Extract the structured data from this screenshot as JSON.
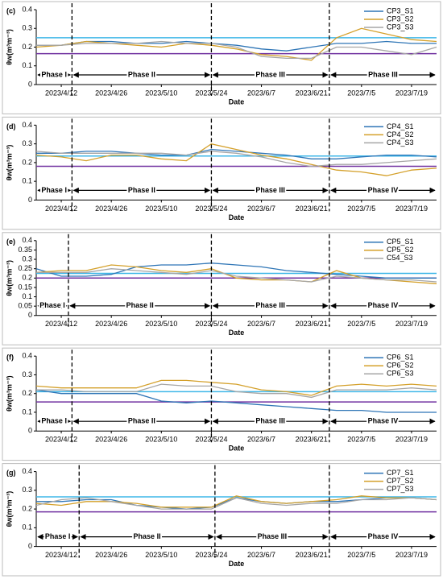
{
  "chart_data": [
    {
      "type": "line",
      "panel_label": "(c)",
      "x_label": "Date",
      "y_label": "θw(m³m⁻³)",
      "x": [
        "2023/4/5",
        "2023/4/12",
        "2023/4/19",
        "2023/4/26",
        "2023/5/3",
        "2023/5/10",
        "2023/5/17",
        "2023/5/24",
        "2023/5/31",
        "2023/6/7",
        "2023/6/14",
        "2023/6/21",
        "2023/6/28",
        "2023/7/5",
        "2023/7/12",
        "2023/7/19",
        "2023/7/26"
      ],
      "xlim": [
        "2023/4/5",
        "2023/7/26"
      ],
      "xticks": [
        "2023/4/12",
        "2023/4/26",
        "2023/5/10",
        "2023/5/24",
        "2023/6/7",
        "2023/6/21",
        "2023/7/5",
        "2023/7/19"
      ],
      "ylim": [
        0,
        0.4
      ],
      "yticks": [
        0,
        0.1,
        0.2,
        0.3,
        0.4
      ],
      "series": [
        {
          "name": "CP3_S1",
          "color": "#2e75b6",
          "values": [
            0.21,
            0.21,
            0.23,
            0.23,
            0.22,
            0.22,
            0.23,
            0.22,
            0.21,
            0.19,
            0.18,
            0.2,
            0.22,
            0.22,
            0.23,
            0.22,
            0.22
          ]
        },
        {
          "name": "CP3_S2",
          "color": "#d4a02a",
          "values": [
            0.2,
            0.21,
            0.23,
            0.22,
            0.21,
            0.2,
            0.22,
            0.21,
            0.19,
            0.16,
            0.15,
            0.13,
            0.25,
            0.3,
            0.27,
            0.24,
            0.23
          ]
        },
        {
          "name": "CP3_S3",
          "color": "#a6a6a6",
          "values": [
            0.21,
            0.21,
            0.22,
            0.22,
            0.22,
            0.23,
            0.22,
            0.22,
            0.2,
            0.15,
            0.14,
            0.14,
            0.2,
            0.2,
            0.18,
            0.16,
            0.2
          ]
        }
      ],
      "reference_lines": [
        {
          "value": 0.25,
          "color": "#3fb7e8"
        },
        {
          "value": 0.165,
          "color": "#7030a0"
        }
      ],
      "phase_boundaries": [
        "2023/4/15",
        "2023/5/24",
        "2023/6/26"
      ],
      "phases": [
        "Phase I",
        "Phase II",
        "Phase III",
        "Phase III"
      ]
    },
    {
      "type": "line",
      "panel_label": "(d)",
      "x_label": "Date",
      "y_label": "θw(m³m⁻³)",
      "x": [
        "2023/4/5",
        "2023/4/12",
        "2023/4/19",
        "2023/4/26",
        "2023/5/3",
        "2023/5/10",
        "2023/5/17",
        "2023/5/24",
        "2023/5/31",
        "2023/6/7",
        "2023/6/14",
        "2023/6/21",
        "2023/6/28",
        "2023/7/5",
        "2023/7/12",
        "2023/7/19",
        "2023/7/26"
      ],
      "xlim": [
        "2023/4/5",
        "2023/7/26"
      ],
      "xticks": [
        "2023/4/12",
        "2023/4/26",
        "2023/5/10",
        "2023/5/24",
        "2023/6/7",
        "2023/6/21",
        "2023/7/5",
        "2023/7/19"
      ],
      "ylim": [
        0,
        0.4
      ],
      "yticks": [
        0,
        0.1,
        0.2,
        0.3,
        0.4
      ],
      "series": [
        {
          "name": "CP4_S1",
          "color": "#2e75b6",
          "values": [
            0.25,
            0.25,
            0.26,
            0.26,
            0.25,
            0.24,
            0.24,
            0.27,
            0.26,
            0.25,
            0.24,
            0.22,
            0.22,
            0.23,
            0.24,
            0.24,
            0.23
          ]
        },
        {
          "name": "CP4_S2",
          "color": "#d4a02a",
          "values": [
            0.24,
            0.23,
            0.21,
            0.24,
            0.24,
            0.22,
            0.21,
            0.3,
            0.27,
            0.24,
            0.22,
            0.19,
            0.16,
            0.15,
            0.13,
            0.16,
            0.17
          ]
        },
        {
          "name": "CP4_S3",
          "color": "#a6a6a6",
          "values": [
            0.26,
            0.25,
            0.25,
            0.25,
            0.25,
            0.25,
            0.24,
            0.26,
            0.25,
            0.23,
            0.2,
            0.18,
            0.19,
            0.19,
            0.2,
            0.21,
            0.22
          ]
        }
      ],
      "reference_lines": [
        {
          "value": 0.235,
          "color": "#3fb7e8"
        },
        {
          "value": 0.18,
          "color": "#7030a0"
        }
      ],
      "phase_boundaries": [
        "2023/4/15",
        "2023/5/24",
        "2023/6/26"
      ],
      "phases": [
        "Phase I",
        "Phase II",
        "Phase III",
        "Phase IV"
      ]
    },
    {
      "type": "line",
      "panel_label": "(e)",
      "x_label": "Date",
      "y_label": "θw(m³m⁻³)",
      "x": [
        "2023/4/5",
        "2023/4/12",
        "2023/4/19",
        "2023/4/26",
        "2023/5/3",
        "2023/5/10",
        "2023/5/17",
        "2023/5/24",
        "2023/5/31",
        "2023/6/7",
        "2023/6/14",
        "2023/6/21",
        "2023/6/28",
        "2023/7/5",
        "2023/7/12",
        "2023/7/19",
        "2023/7/26"
      ],
      "xlim": [
        "2023/4/5",
        "2023/7/26"
      ],
      "xticks": [
        "2023/4/12",
        "2023/4/26",
        "2023/5/10",
        "2023/5/24",
        "2023/6/7",
        "2023/6/21",
        "2023/7/5",
        "2023/7/19"
      ],
      "ylim": [
        0,
        0.4
      ],
      "yticks": [
        0,
        0.05,
        0.1,
        0.15,
        0.2,
        0.25,
        0.3,
        0.35,
        0.4
      ],
      "series": [
        {
          "name": "CP5_S1",
          "color": "#2e75b6",
          "values": [
            0.25,
            0.21,
            0.21,
            0.22,
            0.26,
            0.27,
            0.27,
            0.28,
            0.27,
            0.26,
            0.24,
            0.23,
            0.22,
            0.21,
            0.2,
            0.2,
            0.2
          ]
        },
        {
          "name": "CP5_S2",
          "color": "#d4a02a",
          "values": [
            0.23,
            0.24,
            0.24,
            0.27,
            0.26,
            0.24,
            0.23,
            0.25,
            0.2,
            0.19,
            0.19,
            0.18,
            0.24,
            0.2,
            0.19,
            0.18,
            0.17
          ]
        },
        {
          "name": "C54_S3",
          "color": "#a6a6a6",
          "values": [
            0.23,
            0.23,
            0.23,
            0.25,
            0.24,
            0.23,
            0.22,
            0.24,
            0.21,
            0.2,
            0.19,
            0.18,
            0.21,
            0.2,
            0.19,
            0.19,
            0.18
          ]
        }
      ],
      "reference_lines": [
        {
          "value": 0.225,
          "color": "#3fb7e8"
        },
        {
          "value": 0.2,
          "color": "#7030a0"
        }
      ],
      "phase_boundaries": [
        "2023/4/14",
        "2023/5/24",
        "2023/6/26"
      ],
      "phases": [
        "Phase I",
        "Phase II",
        "Phase III",
        "Phase IV"
      ]
    },
    {
      "type": "line",
      "panel_label": "(f)",
      "x_label": "Date",
      "y_label": "θw(m³m⁻³)",
      "x": [
        "2023/4/5",
        "2023/4/12",
        "2023/4/19",
        "2023/4/26",
        "2023/5/3",
        "2023/5/10",
        "2023/5/17",
        "2023/5/24",
        "2023/5/31",
        "2023/6/7",
        "2023/6/14",
        "2023/6/21",
        "2023/6/28",
        "2023/7/5",
        "2023/7/12",
        "2023/7/19",
        "2023/7/26"
      ],
      "xlim": [
        "2023/4/5",
        "2023/7/26"
      ],
      "xticks": [
        "2023/4/12",
        "2023/4/26",
        "2023/5/10",
        "2023/5/24",
        "2023/6/7",
        "2023/6/21",
        "2023/7/5",
        "2023/7/19"
      ],
      "ylim": [
        0,
        0.4
      ],
      "yticks": [
        0,
        0.1,
        0.2,
        0.3,
        0.4
      ],
      "series": [
        {
          "name": "CP6_S1",
          "color": "#2e75b6",
          "values": [
            0.22,
            0.2,
            0.2,
            0.2,
            0.2,
            0.16,
            0.15,
            0.16,
            0.15,
            0.14,
            0.13,
            0.12,
            0.11,
            0.11,
            0.1,
            0.1,
            0.1
          ]
        },
        {
          "name": "CP6_S2",
          "color": "#d4a02a",
          "values": [
            0.24,
            0.23,
            0.23,
            0.23,
            0.23,
            0.27,
            0.27,
            0.26,
            0.25,
            0.22,
            0.21,
            0.19,
            0.24,
            0.25,
            0.24,
            0.25,
            0.24
          ]
        },
        {
          "name": "CP6_S3",
          "color": "#a6a6a6",
          "values": [
            0.22,
            0.22,
            0.21,
            0.21,
            0.21,
            0.25,
            0.24,
            0.24,
            0.21,
            0.2,
            0.2,
            0.18,
            0.22,
            0.22,
            0.22,
            0.23,
            0.22
          ]
        }
      ],
      "reference_lines": [
        {
          "value": 0.21,
          "color": "#3fb7e8"
        },
        {
          "value": 0.155,
          "color": "#7030a0"
        }
      ],
      "phase_boundaries": [
        "2023/4/15",
        "2023/5/24",
        "2023/6/26"
      ],
      "phases": [
        "Phase I",
        "Phase II",
        "Phase III",
        "Phase IV"
      ]
    },
    {
      "type": "line",
      "panel_label": "(g)",
      "x_label": "Date",
      "y_label": "θw(m³m⁻³)",
      "x": [
        "2023/4/5",
        "2023/4/12",
        "2023/4/19",
        "2023/4/26",
        "2023/5/3",
        "2023/5/10",
        "2023/5/17",
        "2023/5/24",
        "2023/5/31",
        "2023/6/7",
        "2023/6/14",
        "2023/6/21",
        "2023/6/28",
        "2023/7/5",
        "2023/7/12",
        "2023/7/19",
        "2023/7/26"
      ],
      "xlim": [
        "2023/4/5",
        "2023/7/26"
      ],
      "xticks": [
        "2023/4/12",
        "2023/4/26",
        "2023/5/10",
        "2023/5/24",
        "2023/6/7",
        "2023/6/21",
        "2023/7/5",
        "2023/7/19"
      ],
      "ylim": [
        0,
        0.4
      ],
      "yticks": [
        0,
        0.1,
        0.2,
        0.3,
        0.4
      ],
      "series": [
        {
          "name": "CP7_S1",
          "color": "#2e75b6",
          "values": [
            0.24,
            0.24,
            0.25,
            0.25,
            0.22,
            0.21,
            0.2,
            0.21,
            0.26,
            0.24,
            0.23,
            0.24,
            0.24,
            0.25,
            0.26,
            0.26,
            0.25
          ]
        },
        {
          "name": "CP7_S2",
          "color": "#d4a02a",
          "values": [
            0.23,
            0.22,
            0.24,
            0.24,
            0.23,
            0.21,
            0.21,
            0.21,
            0.27,
            0.24,
            0.23,
            0.24,
            0.25,
            0.27,
            0.26,
            0.26,
            0.25
          ]
        },
        {
          "name": "CP7_S3",
          "color": "#a6a6a6",
          "values": [
            0.22,
            0.25,
            0.26,
            0.24,
            0.22,
            0.2,
            0.2,
            0.2,
            0.26,
            0.23,
            0.22,
            0.23,
            0.23,
            0.25,
            0.25,
            0.26,
            0.25
          ]
        }
      ],
      "reference_lines": [
        {
          "value": 0.265,
          "color": "#3fb7e8"
        },
        {
          "value": 0.185,
          "color": "#7030a0"
        }
      ],
      "phase_boundaries": [
        "2023/4/17",
        "2023/5/25",
        "2023/6/26"
      ],
      "phases": [
        "Phase I",
        "Phase II",
        "Phase III",
        "Phase IV"
      ]
    }
  ]
}
